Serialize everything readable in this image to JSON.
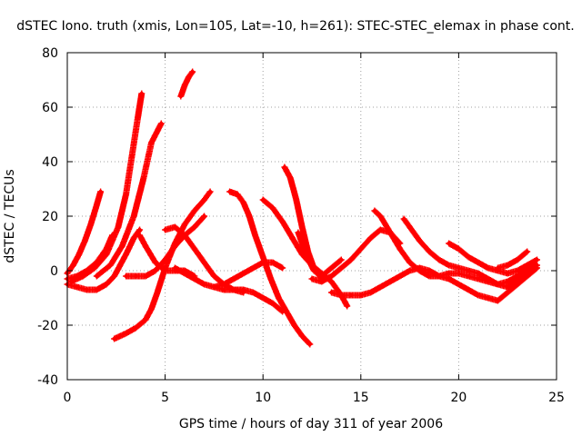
{
  "chart_data": {
    "type": "scatter",
    "title": "dSTEC Iono. truth (xmis, Lon=105, Lat=-10, h=261): STEC-STEC_elemax in phase cont.",
    "xlabel": "GPS time / hours of day 311 of year 2006",
    "ylabel": "dSTEC  / TECUs",
    "xlim": [
      0,
      25
    ],
    "ylim": [
      -40,
      80
    ],
    "xticks": [
      0,
      5,
      10,
      15,
      20,
      25
    ],
    "yticks": [
      -40,
      -20,
      0,
      20,
      40,
      60,
      80
    ],
    "grid": true,
    "marker": "+",
    "color": "#ff0000",
    "series": [
      {
        "x": [
          0,
          0.3,
          0.6,
          0.9,
          1.2,
          1.5,
          1.7
        ],
        "y": [
          -1,
          2,
          6,
          11,
          17,
          24,
          29
        ]
      },
      {
        "x": [
          0,
          0.5,
          1.0,
          1.5,
          2.0,
          2.3
        ],
        "y": [
          -3,
          -2,
          0,
          3,
          8,
          13
        ]
      },
      {
        "x": [
          0.2,
          0.8,
          1.4,
          2.0,
          2.6,
          3.0,
          3.3,
          3.6,
          3.8
        ],
        "y": [
          -4,
          -2,
          1,
          6,
          16,
          28,
          42,
          56,
          65
        ]
      },
      {
        "x": [
          1.5,
          2.2,
          2.8,
          3.4,
          3.9,
          4.3,
          4.8
        ],
        "y": [
          -2,
          2,
          9,
          20,
          34,
          47,
          54
        ]
      },
      {
        "x": [
          0,
          0.5,
          1.0,
          1.5,
          2.0,
          2.4,
          2.7,
          3.0,
          3.4,
          3.7
        ],
        "y": [
          -5,
          -6,
          -7,
          -7,
          -5,
          -2,
          2,
          6,
          12,
          15
        ]
      },
      {
        "x": [
          3.7,
          4.0,
          4.5,
          5.0,
          5.5,
          6.0,
          6.5
        ],
        "y": [
          13,
          9,
          3,
          0,
          0,
          0,
          -2
        ]
      },
      {
        "x": [
          5.8,
          6.0,
          6.2,
          6.4
        ],
        "y": [
          64,
          68,
          71,
          73
        ]
      },
      {
        "x": [
          2.4,
          3.0,
          3.5,
          4.0,
          4.3,
          4.6,
          5.0,
          5.5,
          6.0,
          6.5,
          7.0,
          7.3
        ],
        "y": [
          -25,
          -23,
          -21,
          -18,
          -14,
          -8,
          1,
          10,
          17,
          22,
          26,
          29
        ]
      },
      {
        "x": [
          3.0,
          3.5,
          4.0,
          4.5,
          5.0,
          5.5,
          6.0,
          6.5,
          7.0
        ],
        "y": [
          -2,
          -2,
          -2,
          0,
          4,
          9,
          13,
          16,
          20
        ]
      },
      {
        "x": [
          5.0,
          5.5,
          6.0,
          6.5,
          7.0,
          7.5,
          8.0,
          8.5,
          9.0
        ],
        "y": [
          15,
          16,
          13,
          8,
          3,
          -2,
          -5,
          -7,
          -8
        ]
      },
      {
        "x": [
          5.5,
          6.0,
          6.5,
          7.0,
          7.5,
          8.0,
          8.5,
          9.0,
          9.5,
          10.0,
          10.5,
          11.0
        ],
        "y": [
          1,
          -1,
          -3,
          -5,
          -6,
          -7,
          -7,
          -7,
          -8,
          -10,
          -12,
          -15
        ]
      },
      {
        "x": [
          8.3,
          8.7,
          9.0,
          9.3,
          9.6,
          10.0,
          10.4,
          10.8,
          11.2,
          11.6,
          12.0,
          12.4
        ],
        "y": [
          29,
          28,
          25,
          20,
          13,
          5,
          -3,
          -10,
          -15,
          -20,
          -24,
          -27
        ]
      },
      {
        "x": [
          7.5,
          8.0,
          8.5,
          9.0,
          9.5,
          10.0,
          10.5,
          11.0
        ],
        "y": [
          -6,
          -5,
          -3,
          -1,
          1,
          3,
          3,
          1
        ]
      },
      {
        "x": [
          10.0,
          10.5,
          11.0,
          11.5,
          12.0,
          12.5,
          13.0,
          13.5,
          14.0,
          14.3
        ],
        "y": [
          26,
          23,
          18,
          12,
          6,
          2,
          -1,
          -4,
          -9,
          -13
        ]
      },
      {
        "x": [
          11.1,
          11.4,
          11.7,
          12.0,
          12.3,
          12.6,
          13.0
        ],
        "y": [
          38,
          34,
          26,
          16,
          7,
          1,
          -3
        ]
      },
      {
        "x": [
          11.8,
          12.2,
          12.6,
          13.0,
          13.5,
          14.0
        ],
        "y": [
          14,
          6,
          0,
          -2,
          1,
          4
        ]
      },
      {
        "x": [
          12.5,
          13.0,
          13.5,
          14.0,
          14.5,
          15.0,
          15.5,
          16.0,
          16.5,
          17.0
        ],
        "y": [
          -3,
          -4,
          -2,
          1,
          4,
          8,
          12,
          15,
          14,
          10
        ]
      },
      {
        "x": [
          15.7,
          16.0,
          16.5,
          17.0,
          17.5,
          18.0,
          18.5,
          19.0,
          19.5,
          20.0,
          20.5,
          21.0,
          21.5,
          22.0,
          22.5,
          23.0,
          23.5,
          24.0
        ],
        "y": [
          22,
          20,
          14,
          8,
          3,
          0,
          -2,
          -2,
          -1,
          -1,
          -2,
          -3,
          -4,
          -5,
          -4,
          -2,
          0,
          2
        ]
      },
      {
        "x": [
          13.5,
          14.0,
          14.5,
          15.0,
          15.5,
          16.0,
          16.5,
          17.0,
          17.5,
          18.0,
          18.5,
          19.0,
          19.5,
          20.0,
          20.5,
          21.0,
          21.5,
          22.0,
          22.5,
          23.0,
          23.5,
          24.0
        ],
        "y": [
          -8,
          -9,
          -9,
          -9,
          -8,
          -6,
          -4,
          -2,
          0,
          1,
          0,
          -2,
          -3,
          -5,
          -7,
          -9,
          -10,
          -11,
          -8,
          -5,
          -2,
          1
        ]
      },
      {
        "x": [
          17.2,
          17.5,
          18.0,
          18.5,
          19.0,
          19.5,
          20.0,
          20.5,
          21.0,
          21.5,
          22.0,
          22.5,
          23.0,
          23.5
        ],
        "y": [
          19,
          16,
          11,
          7,
          4,
          2,
          1,
          0,
          -1,
          -3,
          -5,
          -6,
          -4,
          0
        ]
      },
      {
        "x": [
          19.5,
          20.0,
          20.5,
          21.0,
          21.5,
          22.0,
          22.5,
          23.0,
          23.5,
          24.0
        ],
        "y": [
          10,
          8,
          5,
          3,
          1,
          0,
          -1,
          0,
          2,
          4
        ]
      },
      {
        "x": [
          22.0,
          22.5,
          23.0,
          23.5
        ],
        "y": [
          1,
          2,
          4,
          7
        ]
      }
    ]
  }
}
